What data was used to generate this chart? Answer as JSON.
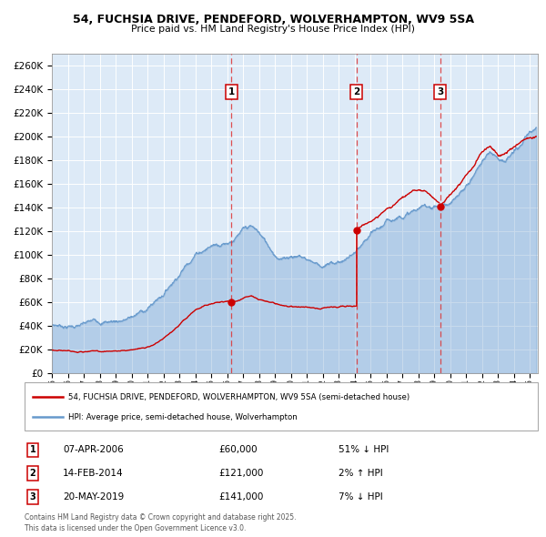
{
  "title": "54, FUCHSIA DRIVE, PENDEFORD, WOLVERHAMPTON, WV9 5SA",
  "subtitle": "Price paid vs. HM Land Registry's House Price Index (HPI)",
  "xlim": [
    1995.0,
    2025.5
  ],
  "ylim": [
    0,
    270000
  ],
  "yticks": [
    0,
    20000,
    40000,
    60000,
    80000,
    100000,
    120000,
    140000,
    160000,
    180000,
    200000,
    220000,
    240000,
    260000
  ],
  "bg_color": "#ddeaf7",
  "grid_color": "#ffffff",
  "sale_dates": [
    2006.27,
    2014.12,
    2019.38
  ],
  "sale_prices": [
    60000,
    121000,
    141000
  ],
  "transactions": [
    {
      "num": 1,
      "date": "07-APR-2006",
      "price": "£60,000",
      "hpi": "51% ↓ HPI"
    },
    {
      "num": 2,
      "date": "14-FEB-2014",
      "price": "£121,000",
      "hpi": "2% ↑ HPI"
    },
    {
      "num": 3,
      "date": "20-MAY-2019",
      "price": "£141,000",
      "hpi": "7% ↓ HPI"
    }
  ],
  "legend_red": "54, FUCHSIA DRIVE, PENDEFORD, WOLVERHAMPTON, WV9 5SA (semi-detached house)",
  "legend_blue": "HPI: Average price, semi-detached house, Wolverhampton",
  "footnote": "Contains HM Land Registry data © Crown copyright and database right 2025.\nThis data is licensed under the Open Government Licence v3.0.",
  "red_color": "#cc0000",
  "blue_color": "#6699cc",
  "hpi_key": [
    [
      1995.0,
      41000
    ],
    [
      1996.0,
      41500
    ],
    [
      1997.0,
      43000
    ],
    [
      1998.0,
      45000
    ],
    [
      1999.0,
      47000
    ],
    [
      2000.0,
      51000
    ],
    [
      2001.0,
      58000
    ],
    [
      2002.0,
      72000
    ],
    [
      2003.0,
      92000
    ],
    [
      2004.0,
      112000
    ],
    [
      2005.0,
      121000
    ],
    [
      2006.0,
      127000
    ],
    [
      2007.0,
      137000
    ],
    [
      2007.5,
      138000
    ],
    [
      2008.0,
      132000
    ],
    [
      2008.5,
      122000
    ],
    [
      2009.0,
      115000
    ],
    [
      2009.5,
      112000
    ],
    [
      2010.0,
      116000
    ],
    [
      2010.5,
      117000
    ],
    [
      2011.0,
      115000
    ],
    [
      2011.5,
      113000
    ],
    [
      2012.0,
      111000
    ],
    [
      2012.5,
      112000
    ],
    [
      2013.0,
      114000
    ],
    [
      2013.5,
      117000
    ],
    [
      2014.0,
      121000
    ],
    [
      2014.5,
      125000
    ],
    [
      2015.0,
      131000
    ],
    [
      2015.5,
      134000
    ],
    [
      2016.0,
      139000
    ],
    [
      2016.5,
      143000
    ],
    [
      2017.0,
      148000
    ],
    [
      2017.5,
      151000
    ],
    [
      2018.0,
      153000
    ],
    [
      2018.5,
      155000
    ],
    [
      2019.0,
      156000
    ],
    [
      2019.5,
      158000
    ],
    [
      2020.0,
      158000
    ],
    [
      2020.5,
      162000
    ],
    [
      2021.0,
      170000
    ],
    [
      2021.5,
      181000
    ],
    [
      2022.0,
      193000
    ],
    [
      2022.5,
      200000
    ],
    [
      2023.0,
      198000
    ],
    [
      2023.5,
      197000
    ],
    [
      2024.0,
      202000
    ],
    [
      2024.5,
      208000
    ],
    [
      2025.0,
      215000
    ],
    [
      2025.4,
      218000
    ]
  ],
  "red_key_p1": [
    [
      1995.0,
      19500
    ],
    [
      1996.0,
      19800
    ],
    [
      1997.0,
      20000
    ],
    [
      1998.0,
      20200
    ],
    [
      1999.0,
      20500
    ],
    [
      2000.0,
      21500
    ],
    [
      2001.0,
      24000
    ],
    [
      2002.0,
      31000
    ],
    [
      2003.0,
      41000
    ],
    [
      2004.0,
      52000
    ],
    [
      2005.0,
      57000
    ],
    [
      2005.5,
      59000
    ],
    [
      2006.2,
      60000
    ]
  ],
  "red_key_p2": [
    [
      2006.27,
      60000
    ],
    [
      2007.0,
      64000
    ],
    [
      2007.5,
      66000
    ],
    [
      2008.0,
      63000
    ],
    [
      2009.0,
      59000
    ],
    [
      2010.0,
      56000
    ],
    [
      2011.0,
      55000
    ],
    [
      2012.0,
      54000
    ],
    [
      2013.0,
      56000
    ],
    [
      2013.5,
      57000
    ],
    [
      2014.1,
      58000
    ]
  ],
  "red_key_p3": [
    [
      2014.12,
      121000
    ],
    [
      2015.0,
      128000
    ],
    [
      2015.5,
      132000
    ],
    [
      2016.0,
      138000
    ],
    [
      2016.5,
      142000
    ],
    [
      2017.0,
      147000
    ],
    [
      2017.5,
      150000
    ],
    [
      2018.0,
      152000
    ],
    [
      2018.5,
      150000
    ],
    [
      2019.0,
      145000
    ],
    [
      2019.3,
      141000
    ]
  ],
  "red_key_p4": [
    [
      2019.38,
      141000
    ],
    [
      2020.0,
      152000
    ],
    [
      2020.5,
      158000
    ],
    [
      2021.0,
      167000
    ],
    [
      2021.5,
      175000
    ],
    [
      2022.0,
      185000
    ],
    [
      2022.5,
      188000
    ],
    [
      2023.0,
      182000
    ],
    [
      2023.5,
      185000
    ],
    [
      2024.0,
      190000
    ],
    [
      2024.5,
      195000
    ],
    [
      2025.0,
      198000
    ],
    [
      2025.4,
      200000
    ]
  ]
}
